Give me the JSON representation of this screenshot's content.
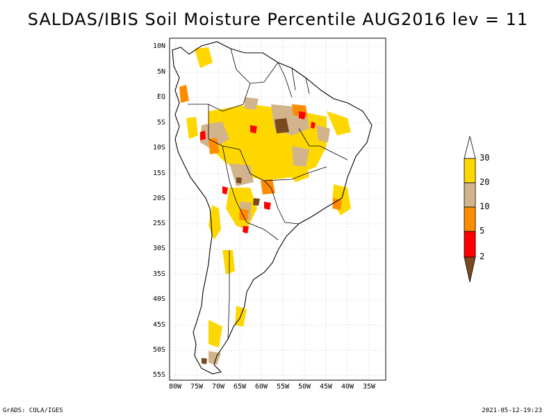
{
  "title": "SALDAS/IBIS Soil Moisture Percentile AUG2016 lev = 11",
  "lat_ticks": [
    "10N",
    "5N",
    "EQ",
    "5S",
    "10S",
    "15S",
    "20S",
    "25S",
    "30S",
    "35S",
    "40S",
    "45S",
    "50S",
    "55S"
  ],
  "lon_ticks": [
    "80W",
    "75W",
    "70W",
    "65W",
    "60W",
    "55W",
    "50W",
    "45W",
    "40W",
    "35W"
  ],
  "colorbar": {
    "levels": [
      "2",
      "5",
      "10",
      "20",
      "30"
    ],
    "colors": {
      "lt2": "#7a4a1e",
      "2to5": "#ff0000",
      "5to10": "#ff8c00",
      "10to20": "#d2b48c",
      "20to30": "#ffd700",
      "gt30": "#ffffff"
    }
  },
  "footer": {
    "left": "GrADS: COLA/IGES",
    "right": "2021-05-12-19:23"
  }
}
